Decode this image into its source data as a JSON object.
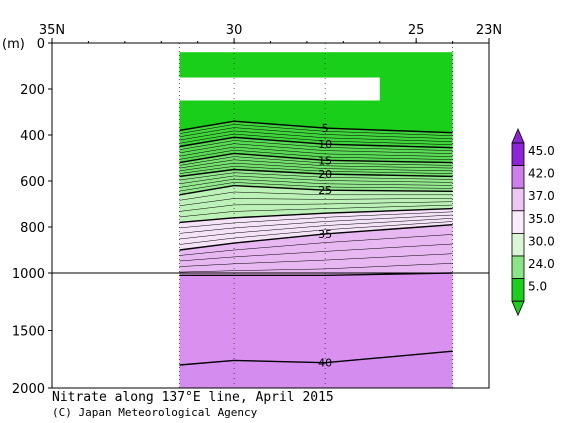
{
  "chart_data": {
    "type": "contour",
    "title": "Nitrate along 137°E line, April 2015",
    "credit": "(C) Japan Meteorological Agency",
    "depth_unit_label": "(m)",
    "x_axis": {
      "direction": "north-to-south",
      "range_deg": [
        35,
        23
      ],
      "ticks": [
        {
          "value": 35,
          "label": "35N"
        },
        {
          "value": 30,
          "label": "30"
        },
        {
          "value": 25,
          "label": "25"
        },
        {
          "value": 23,
          "label": "23N"
        }
      ]
    },
    "y_axis": {
      "inverted": true,
      "upper_segment": {
        "range": [
          0,
          1000
        ],
        "ticks": [
          "0",
          "200",
          "400",
          "600",
          "800",
          "1000"
        ]
      },
      "lower_segment": {
        "range": [
          1000,
          2000
        ],
        "ticks": [
          "1500",
          "2000"
        ]
      }
    },
    "data_extent_lat": [
      31.5,
      24.0
    ],
    "stations_lat": [
      31.5,
      30,
      27.5,
      24
    ],
    "colorbar": {
      "orientation": "vertical",
      "position": "right",
      "labels": [
        "45.0",
        "42.0",
        "37.0",
        "35.0",
        "30.0",
        "24.0",
        "5.0"
      ],
      "colors": [
        "#8e24d8",
        "#cf7fed",
        "#f0c6f5",
        "#fbeafc",
        "#dbf6d6",
        "#8ae585",
        "#1ccf1c"
      ]
    },
    "contour_labels": [
      "5",
      "10",
      "15",
      "20",
      "25",
      "35",
      "40"
    ],
    "contours_depth_m": [
      {
        "value": 5,
        "lats": [
          31.5,
          30,
          27.5,
          24
        ],
        "depths": [
          380,
          340,
          370,
          390
        ],
        "labeled": true
      },
      {
        "value": 10,
        "lats": [
          31.5,
          30,
          27.5,
          24
        ],
        "depths": [
          450,
          410,
          440,
          455
        ],
        "labeled": true
      },
      {
        "value": 15,
        "lats": [
          31.5,
          30,
          27.5,
          24
        ],
        "depths": [
          520,
          480,
          510,
          520
        ],
        "labeled": true
      },
      {
        "value": 20,
        "lats": [
          31.5,
          30,
          27.5,
          24
        ],
        "depths": [
          580,
          550,
          570,
          580
        ],
        "labeled": true
      },
      {
        "value": 25,
        "lats": [
          31.5,
          30,
          27.5,
          24
        ],
        "depths": [
          660,
          620,
          640,
          645
        ],
        "labeled": true
      },
      {
        "value": 30,
        "lats": [
          31.5,
          30,
          27.5,
          24
        ],
        "depths": [
          780,
          760,
          740,
          720
        ],
        "labeled": false
      },
      {
        "value": 35,
        "lats": [
          31.5,
          30,
          27.5,
          24
        ],
        "depths": [
          900,
          870,
          830,
          790
        ],
        "labeled": true
      },
      {
        "value": 37,
        "lats": [
          31.5,
          30,
          27.5,
          24
        ],
        "depths": [
          1020,
          1020,
          1020,
          1000
        ],
        "labeled": false
      },
      {
        "value": 40,
        "lats": [
          31.5,
          30,
          27.5,
          24
        ],
        "depths": [
          1800,
          1760,
          1780,
          1680
        ],
        "labeled": true
      }
    ],
    "missing_data_regions": [
      {
        "lat": [
          31.5,
          24.0
        ],
        "depth_m": [
          0,
          40
        ]
      },
      {
        "lat": [
          31.5,
          26.0
        ],
        "depth_m": [
          150,
          250
        ]
      }
    ]
  }
}
